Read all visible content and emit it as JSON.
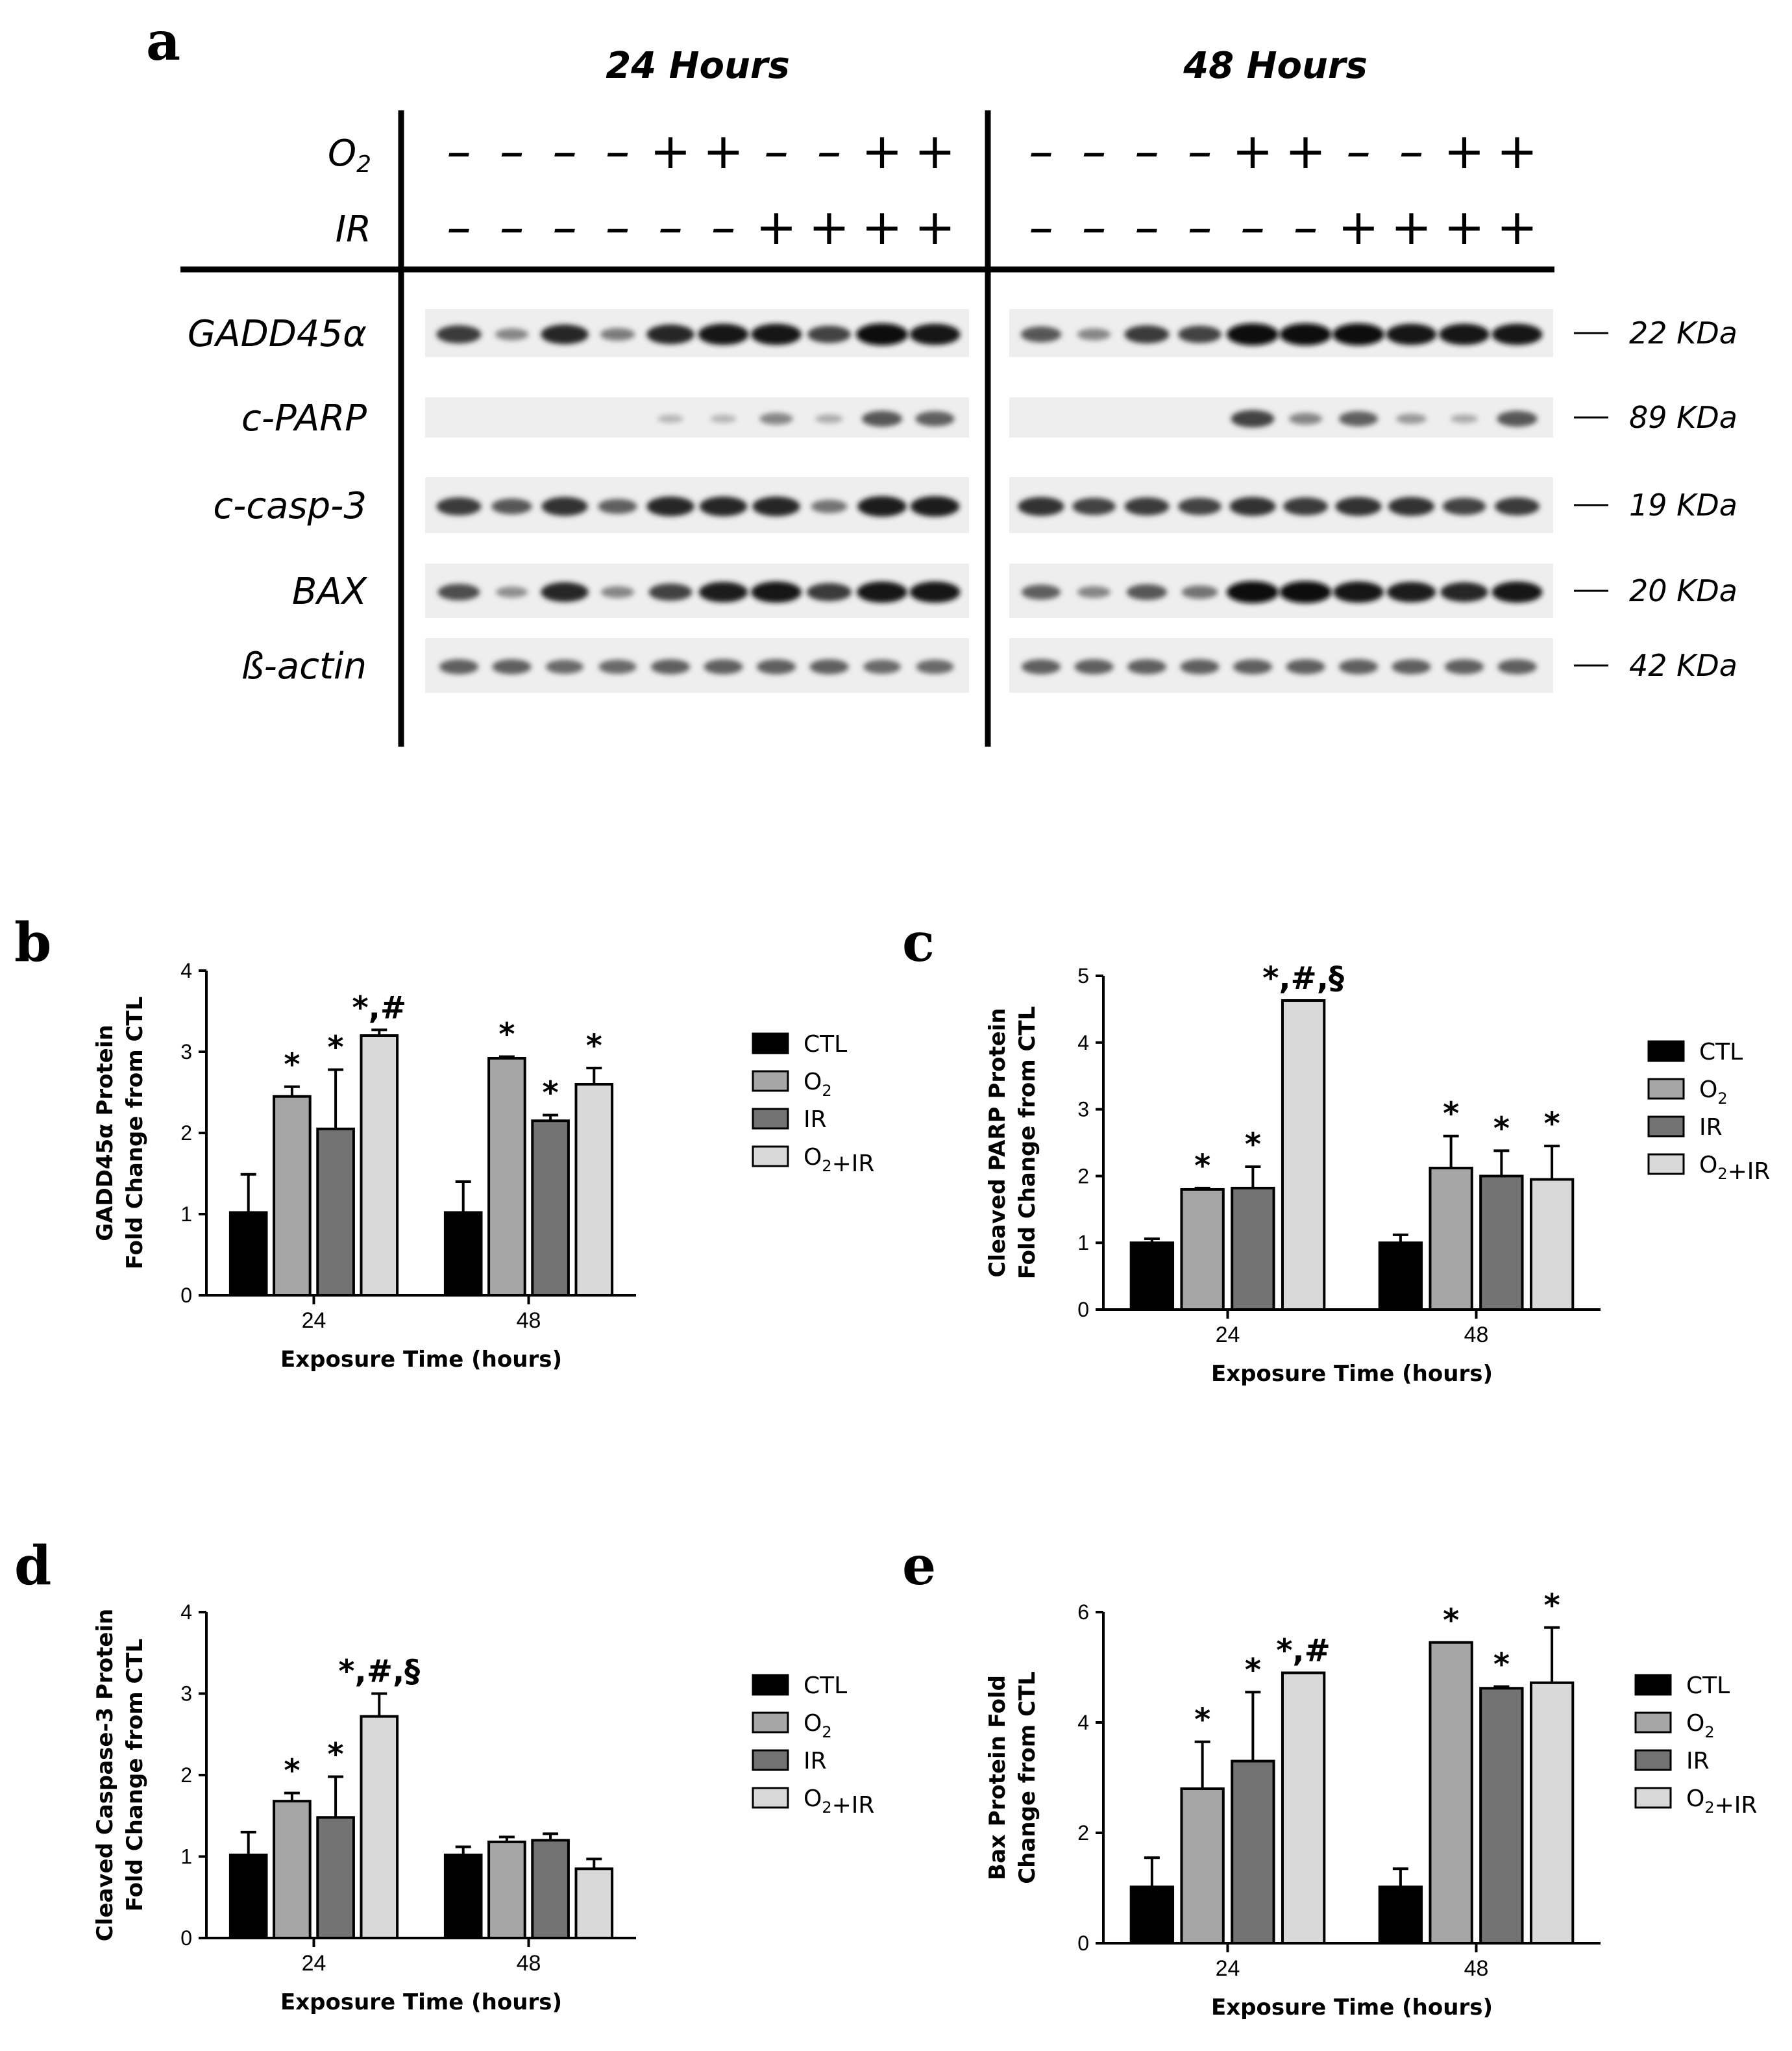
{
  "blot": {
    "panel_letter": "a",
    "time_headers": [
      "24 Hours",
      "48 Hours"
    ],
    "condition_rows": [
      {
        "label": "O2",
        "signs_24h": [
          "–",
          "–",
          "–",
          "–",
          "+",
          "+",
          "–",
          "–",
          "+",
          "+"
        ],
        "signs_48h": [
          "–",
          "–",
          "–",
          "–",
          "+",
          "+",
          "–",
          "–",
          "+",
          "+"
        ]
      },
      {
        "label": "IR",
        "signs_24h": [
          "–",
          "–",
          "–",
          "–",
          "–",
          "–",
          "+",
          "+",
          "+",
          "+"
        ],
        "signs_48h": [
          "–",
          "–",
          "–",
          "–",
          "–",
          "–",
          "+",
          "+",
          "+",
          "+"
        ]
      }
    ],
    "proteins": [
      {
        "label": "GADD45α",
        "size": "22 KDa",
        "intensity_24h": [
          0.75,
          0.35,
          0.85,
          0.4,
          0.85,
          0.95,
          0.95,
          0.7,
          1.0,
          0.95
        ],
        "intensity_48h": [
          0.6,
          0.35,
          0.75,
          0.7,
          1.0,
          1.0,
          1.0,
          0.95,
          0.95,
          0.95
        ]
      },
      {
        "label": "c-PARP",
        "size": "89 KDa",
        "intensity_24h": [
          0,
          0,
          0,
          0,
          0.1,
          0.1,
          0.35,
          0.15,
          0.6,
          0.55
        ],
        "intensity_48h": [
          0,
          0,
          0,
          0,
          0.7,
          0.35,
          0.55,
          0.25,
          0.15,
          0.6
        ]
      },
      {
        "label": "c-casp-3",
        "size": "19 KDa",
        "intensity_24h": [
          0.75,
          0.6,
          0.8,
          0.55,
          0.85,
          0.85,
          0.85,
          0.45,
          0.9,
          0.9
        ],
        "intensity_48h": [
          0.8,
          0.7,
          0.75,
          0.7,
          0.8,
          0.75,
          0.8,
          0.8,
          0.7,
          0.75
        ]
      },
      {
        "label": "BAX",
        "size": "20 KDa",
        "intensity_24h": [
          0.65,
          0.3,
          0.85,
          0.35,
          0.7,
          0.9,
          0.95,
          0.75,
          0.95,
          0.95
        ],
        "intensity_48h": [
          0.55,
          0.35,
          0.6,
          0.45,
          1.0,
          1.0,
          0.95,
          0.9,
          0.85,
          0.95
        ]
      },
      {
        "label": "ß-actin",
        "size": "42 KDa",
        "intensity_24h": [
          0.55,
          0.55,
          0.5,
          0.5,
          0.55,
          0.55,
          0.55,
          0.55,
          0.5,
          0.5
        ],
        "intensity_48h": [
          0.55,
          0.55,
          0.55,
          0.55,
          0.55,
          0.55,
          0.55,
          0.55,
          0.55,
          0.55
        ]
      }
    ]
  },
  "legend": [
    "CTL",
    "O2",
    "IR",
    "O2+IR"
  ],
  "colors": {
    "CTL": "#000000",
    "O2": "#a6a6a6",
    "IR": "#737373",
    "O2+IR": "#d9d9d9"
  },
  "chart_data": [
    {
      "panel": "b",
      "type": "bar",
      "ylabel": "GADD45α Protein Fold Change from CTL",
      "xlabel": "Exposure Time (hours)",
      "categories": [
        "24",
        "48"
      ],
      "ylim": [
        0,
        4
      ],
      "yticks": [
        0,
        1,
        2,
        3,
        4
      ],
      "series": [
        {
          "name": "CTL",
          "values": [
            1.02,
            1.02
          ],
          "errors": [
            0.47,
            0.38
          ]
        },
        {
          "name": "O2",
          "values": [
            2.45,
            2.92
          ],
          "errors": [
            0.12,
            0.02
          ]
        },
        {
          "name": "IR",
          "values": [
            2.05,
            2.15
          ],
          "errors": [
            0.73,
            0.07
          ]
        },
        {
          "name": "O2+IR",
          "values": [
            3.2,
            2.6
          ],
          "errors": [
            0.07,
            0.2
          ]
        }
      ],
      "annotations": [
        [
          "",
          "*",
          "*",
          "*,#"
        ],
        [
          "",
          "*",
          "*",
          "*"
        ]
      ]
    },
    {
      "panel": "c",
      "type": "bar",
      "ylabel": "Cleaved PARP Protein Fold Change from CTL",
      "xlabel": "Exposure Time (hours)",
      "categories": [
        "24",
        "48"
      ],
      "ylim": [
        0,
        5
      ],
      "yticks": [
        0,
        1,
        2,
        3,
        4,
        5
      ],
      "series": [
        {
          "name": "CTL",
          "values": [
            1.0,
            1.0
          ],
          "errors": [
            0.06,
            0.12
          ]
        },
        {
          "name": "O2",
          "values": [
            1.8,
            2.12
          ],
          "errors": [
            0.02,
            0.48
          ]
        },
        {
          "name": "IR",
          "values": [
            1.82,
            2.0
          ],
          "errors": [
            0.32,
            0.38
          ]
        },
        {
          "name": "O2+IR",
          "values": [
            4.63,
            1.95
          ],
          "errors": [
            0.0,
            0.5
          ]
        }
      ],
      "annotations": [
        [
          "",
          "*",
          "*",
          "*,#,§"
        ],
        [
          "",
          "*",
          "*",
          "*"
        ]
      ]
    },
    {
      "panel": "d",
      "type": "bar",
      "ylabel": "Cleaved Caspase-3 Protein Fold Change from CTL",
      "xlabel": "Exposure Time (hours)",
      "categories": [
        "24",
        "48"
      ],
      "ylim": [
        0,
        4
      ],
      "yticks": [
        0,
        1,
        2,
        3,
        4
      ],
      "series": [
        {
          "name": "CTL",
          "values": [
            1.02,
            1.02
          ],
          "errors": [
            0.28,
            0.1
          ]
        },
        {
          "name": "O2",
          "values": [
            1.68,
            1.18
          ],
          "errors": [
            0.1,
            0.06
          ]
        },
        {
          "name": "IR",
          "values": [
            1.48,
            1.2
          ],
          "errors": [
            0.5,
            0.08
          ]
        },
        {
          "name": "O2+IR",
          "values": [
            2.72,
            0.85
          ],
          "errors": [
            0.28,
            0.12
          ]
        }
      ],
      "annotations": [
        [
          "",
          "*",
          "*",
          "*,#,§"
        ],
        [
          "",
          "",
          "",
          ""
        ]
      ]
    },
    {
      "panel": "e",
      "type": "bar",
      "ylabel": "Bax Protein Fold Change from CTL",
      "xlabel": "Exposure Time (hours)",
      "categories": [
        "24",
        "48"
      ],
      "ylim": [
        0,
        6
      ],
      "yticks": [
        0,
        2,
        4,
        6
      ],
      "series": [
        {
          "name": "CTL",
          "values": [
            1.02,
            1.02
          ],
          "errors": [
            0.53,
            0.33
          ]
        },
        {
          "name": "O2",
          "values": [
            2.8,
            5.45
          ],
          "errors": [
            0.85,
            0.0
          ]
        },
        {
          "name": "IR",
          "values": [
            3.3,
            4.62
          ],
          "errors": [
            1.25,
            0.03
          ]
        },
        {
          "name": "O2+IR",
          "values": [
            4.9,
            4.72
          ],
          "errors": [
            0.0,
            1.0
          ]
        }
      ],
      "annotations": [
        [
          "",
          "*",
          "*",
          "*,#"
        ],
        [
          "",
          "*",
          "*",
          "*"
        ]
      ]
    }
  ]
}
